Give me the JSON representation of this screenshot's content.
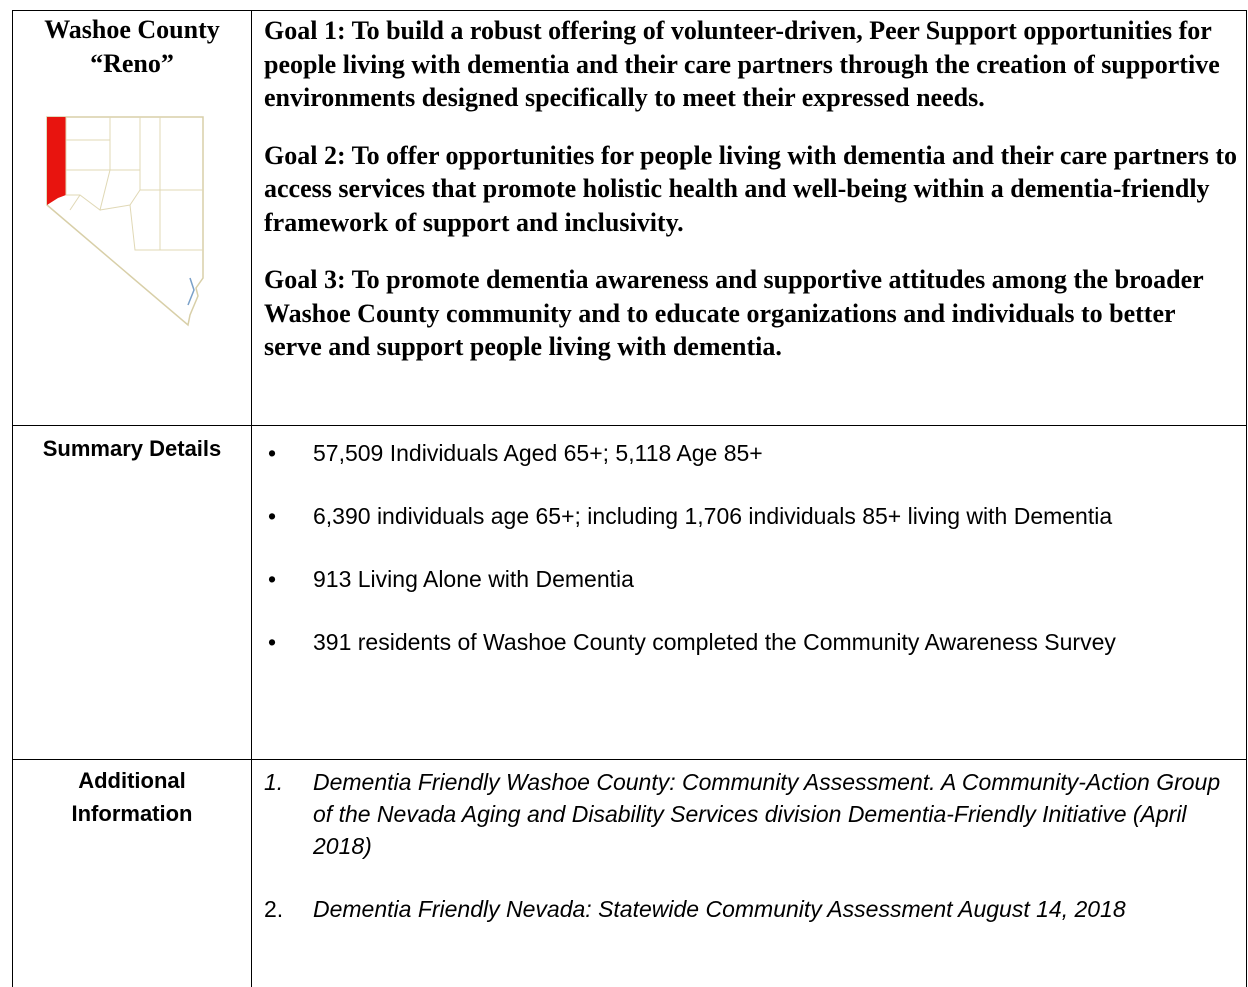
{
  "header": {
    "county": "Washoe County",
    "city": "“Reno”"
  },
  "goals": [
    "Goal 1: To build a robust offering of volunteer-driven, Peer Support opportunities for people living with dementia and their care partners through the creation of supportive environments designed specifically to meet their expressed needs.",
    "Goal 2: To offer opportunities for people living with dementia and their care partners to access services that promote holistic health and well-being within a dementia-friendly framework of support and inclusivity.",
    "Goal 3: To promote dementia awareness and supportive attitudes among the broader Washoe County community and to educate organizations and individuals to better serve and support people living with dementia."
  ],
  "summary": {
    "label": "Summary Details",
    "items": [
      "57,509 Individuals Aged 65+; 5,118 Age 85+",
      "6,390 individuals age 65+; including 1,706 individuals 85+ living with Dementia",
      "913 Living Alone with Dementia",
      "391 residents of Washoe County completed the Community Awareness Survey"
    ]
  },
  "additional": {
    "label": "Additional Information",
    "items": [
      {
        "number": "1.",
        "text": "Dementia Friendly Washoe County: Community Assessment. A Community-Action Group of the Nevada Aging and Disability Services division Dementia-Friendly Initiative (April 2018)"
      },
      {
        "number": "2.",
        "text": "Dementia Friendly Nevada: Statewide Community Assessment August 14, 2018"
      }
    ]
  }
}
